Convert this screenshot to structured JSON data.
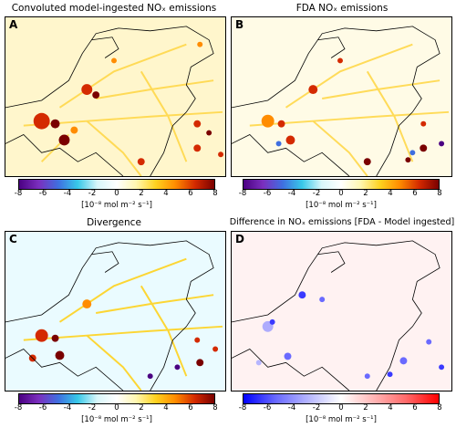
{
  "panels": [
    {
      "id": "A",
      "title": "Convoluted model-ingested NOₓ emissions",
      "letter": "A",
      "scale": "divergent"
    },
    {
      "id": "B",
      "title": "FDA NOₓ emissions",
      "letter": "B",
      "scale": "divergent"
    },
    {
      "id": "C",
      "title": "Divergence",
      "letter": "C",
      "scale": "divergent"
    },
    {
      "id": "D",
      "title": "Difference in NOₓ emissions [FDA - Model ingested]",
      "letter": "D",
      "scale": "bwr"
    }
  ],
  "colorbar": {
    "ticks": [
      "-8",
      "-6",
      "-4",
      "-2",
      "0",
      "2",
      "4",
      "6",
      "8"
    ],
    "unit": "[10⁻⁸ mol m⁻² s⁻¹]"
  },
  "colors": {
    "divergent": [
      "#4b0082",
      "#7b2fbe",
      "#3f6fe0",
      "#38c8e8",
      "#d8f6fa",
      "#ffffff",
      "#fff7b0",
      "#ffd21f",
      "#ff8c00",
      "#d42a00",
      "#7a0000"
    ],
    "bwr": [
      "#0000ff",
      "#6a6aff",
      "#b6b6ff",
      "#ffffff",
      "#ffb6b6",
      "#ff6a6a",
      "#ff0000"
    ],
    "map_a_bg": "#fff6cc",
    "map_c_bg": "#eafbff",
    "map_d_bg": "#fff2f2"
  }
}
